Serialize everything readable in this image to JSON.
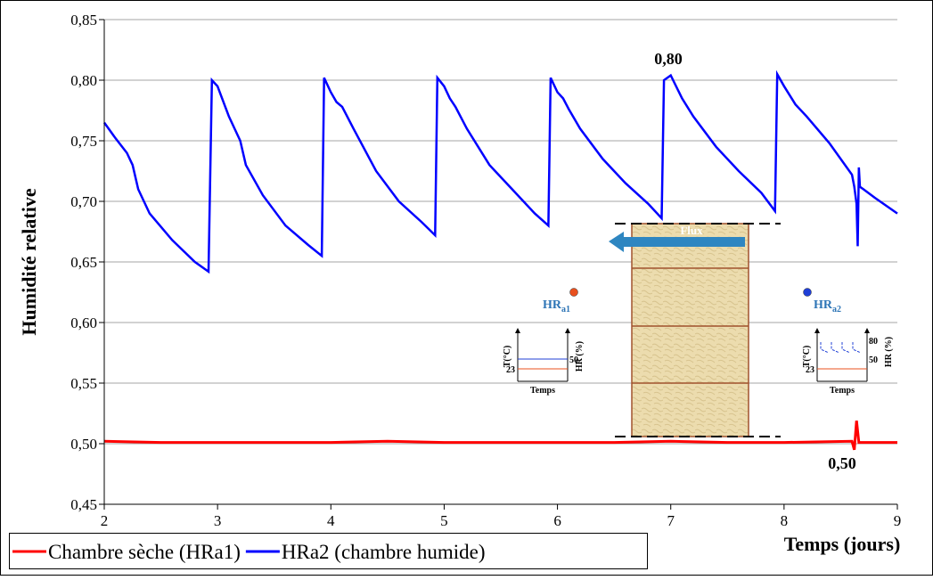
{
  "chart_data": {
    "type": "line",
    "ylabel": "Humidité relative",
    "xlabel": "Temps (jours)",
    "xlim": [
      2,
      9
    ],
    "xticks": [
      2,
      3,
      4,
      5,
      6,
      7,
      8,
      9
    ],
    "ylim": [
      0.45,
      0.85
    ],
    "yticks": [
      {
        "value": 0.45,
        "label": "0,45"
      },
      {
        "value": 0.5,
        "label": "0,50"
      },
      {
        "value": 0.55,
        "label": "0,55"
      },
      {
        "value": 0.6,
        "label": "0,60"
      },
      {
        "value": 0.65,
        "label": "0,65"
      },
      {
        "value": 0.7,
        "label": "0,70"
      },
      {
        "value": 0.75,
        "label": "0,75"
      },
      {
        "value": 0.8,
        "label": "0,80"
      },
      {
        "value": 0.85,
        "label": "0,85"
      }
    ],
    "grid": true,
    "legend": "bottom-left",
    "series": [
      {
        "name": "Chambre sèche (HRa1)",
        "color": "#ff0000",
        "x": [
          2,
          2.5,
          3,
          3.5,
          4,
          4.5,
          5,
          5.5,
          6,
          6.5,
          7,
          7.5,
          8,
          8.6,
          8.62,
          8.64,
          8.66,
          8.7,
          9
        ],
        "values": [
          0.502,
          0.501,
          0.501,
          0.501,
          0.501,
          0.502,
          0.501,
          0.501,
          0.501,
          0.501,
          0.502,
          0.501,
          0.501,
          0.502,
          0.495,
          0.519,
          0.501,
          0.501,
          0.501
        ]
      },
      {
        "name": "HRa2 (chambre humide)",
        "color": "#0000ff",
        "x": [
          2,
          2.1,
          2.2,
          2.25,
          2.3,
          2.4,
          2.6,
          2.8,
          2.92,
          2.95,
          3,
          3.1,
          3.2,
          3.25,
          3.4,
          3.6,
          3.8,
          3.92,
          3.94,
          4,
          4.05,
          4.1,
          4.2,
          4.4,
          4.6,
          4.8,
          4.92,
          4.94,
          5,
          5.05,
          5.1,
          5.2,
          5.4,
          5.6,
          5.8,
          5.92,
          5.94,
          6,
          6.05,
          6.1,
          6.2,
          6.4,
          6.6,
          6.8,
          6.92,
          6.94,
          7,
          7.1,
          7.2,
          7.4,
          7.6,
          7.8,
          7.92,
          7.94,
          8,
          8.1,
          8.2,
          8.4,
          8.6,
          8.62,
          8.64,
          8.65,
          8.66,
          8.67,
          8.7,
          8.8,
          9
        ],
        "values": [
          0.765,
          0.752,
          0.74,
          0.73,
          0.71,
          0.69,
          0.668,
          0.65,
          0.642,
          0.8,
          0.795,
          0.77,
          0.75,
          0.73,
          0.705,
          0.68,
          0.664,
          0.655,
          0.802,
          0.79,
          0.782,
          0.778,
          0.76,
          0.725,
          0.7,
          0.683,
          0.672,
          0.802,
          0.795,
          0.785,
          0.778,
          0.76,
          0.73,
          0.71,
          0.69,
          0.68,
          0.802,
          0.79,
          0.785,
          0.776,
          0.76,
          0.735,
          0.715,
          0.698,
          0.686,
          0.8,
          0.804,
          0.785,
          0.77,
          0.745,
          0.725,
          0.707,
          0.692,
          0.805,
          0.795,
          0.78,
          0.77,
          0.748,
          0.722,
          0.712,
          0.698,
          0.663,
          0.728,
          0.712,
          0.71,
          0.703,
          0.69
        ]
      }
    ],
    "annotations": [
      {
        "text": "0,80"
      },
      {
        "text": "0,50"
      },
      {
        "text": "Flux"
      }
    ],
    "points": [
      {
        "text": "HR",
        "sub": "a1"
      },
      {
        "text": "HR",
        "sub": "a2"
      }
    ],
    "insets": {
      "t_axis": "T(°C)",
      "hr_axis": "HR (%)",
      "time": "Temps",
      "t_value": "23",
      "hr_low": "50",
      "hr_high": "80"
    }
  }
}
